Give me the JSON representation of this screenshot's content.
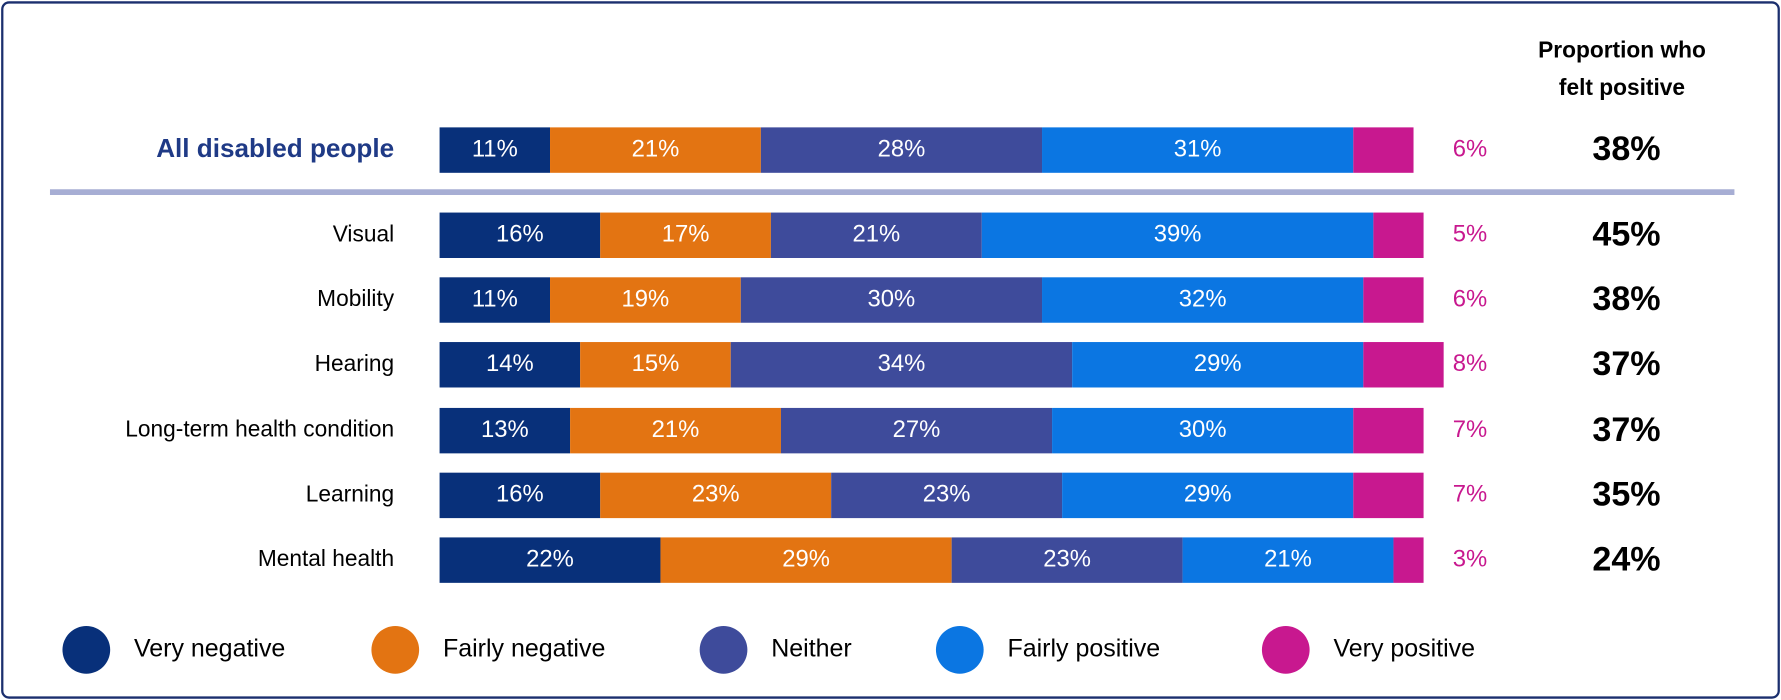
{
  "chart_data": {
    "type": "stacked_bar_horizontal",
    "categories": [
      "All disabled people",
      "Visual",
      "Mobility",
      "Hearing",
      "Long-term health condition",
      "Learning",
      "Mental health"
    ],
    "xlim": [
      0,
      100
    ],
    "series": [
      {
        "name": "Very negative",
        "color": "#08307a",
        "values": [
          11,
          16,
          11,
          14,
          13,
          16,
          22
        ],
        "value_labels": [
          "11%",
          "16%",
          "11%",
          "14%",
          "13%",
          "16%",
          "22%"
        ]
      },
      {
        "name": "Fairly negative",
        "color": "#e37412",
        "values": [
          21,
          17,
          19,
          15,
          21,
          23,
          29
        ],
        "value_labels": [
          "21%",
          "17%",
          "19%",
          "15%",
          "21%",
          "23%",
          "29%"
        ]
      },
      {
        "name": "Neither",
        "color": "#3e4b9b",
        "values": [
          28,
          21,
          30,
          34,
          27,
          23,
          23
        ],
        "value_labels": [
          "28%",
          "21%",
          "30%",
          "34%",
          "27%",
          "23%",
          "23%"
        ]
      },
      {
        "name": "Fairly positive",
        "color": "#0b76e2",
        "values": [
          31,
          39,
          32,
          29,
          30,
          29,
          21
        ],
        "value_labels": [
          "31%",
          "39%",
          "32%",
          "29%",
          "30%",
          "29%",
          "21%"
        ]
      },
      {
        "name": "Very positive",
        "color": "#c8188f",
        "values": [
          6,
          5,
          6,
          8,
          7,
          7,
          3
        ],
        "value_labels": [
          "6%",
          "5%",
          "6%",
          "8%",
          "7%",
          "7%",
          "3%"
        ]
      }
    ],
    "proportion": {
      "title": [
        "Proportion who",
        "felt positive"
      ],
      "values": [
        38,
        45,
        38,
        37,
        37,
        35,
        24
      ],
      "value_labels": [
        "38%",
        "45%",
        "38%",
        "37%",
        "37%",
        "35%",
        "24%"
      ]
    }
  }
}
